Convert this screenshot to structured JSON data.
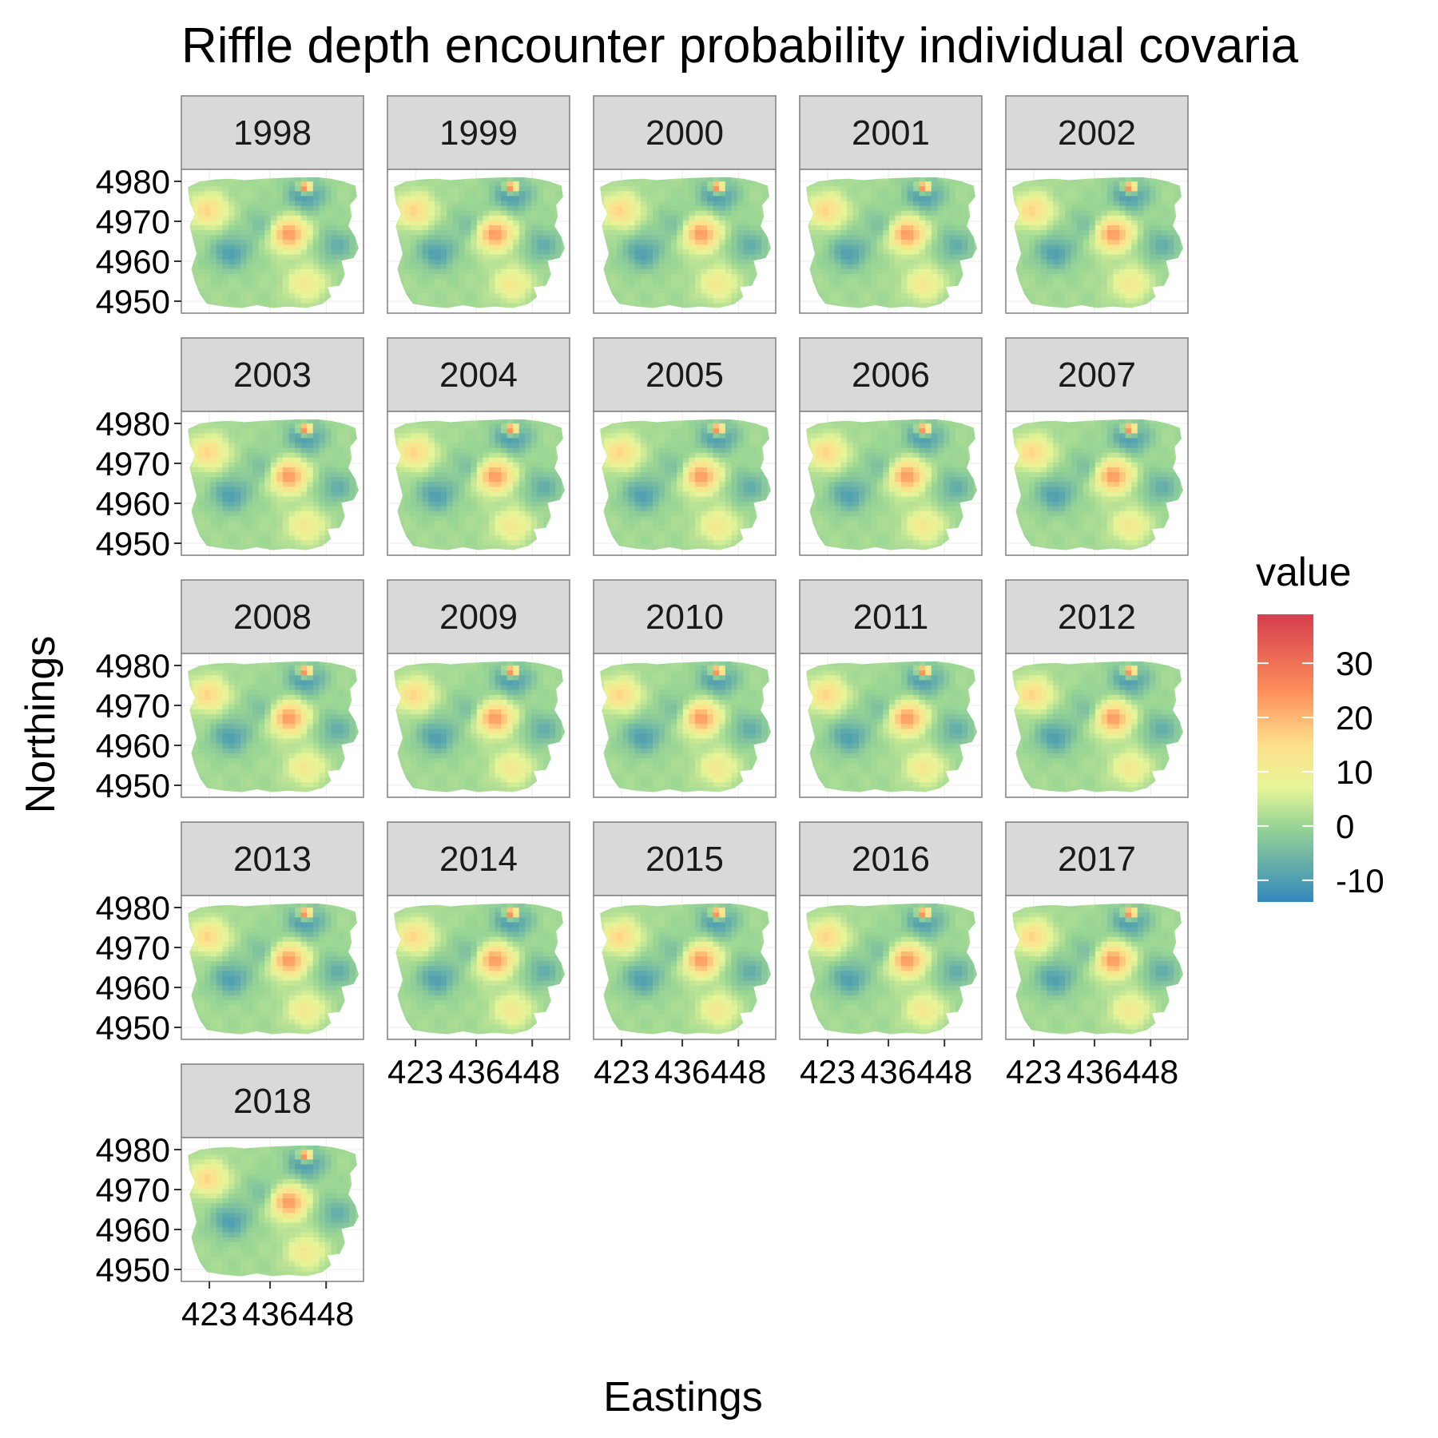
{
  "chart_data": {
    "type": "heatmap",
    "title": "Riffle depth encounter probability individual covaria",
    "xlabel": "Eastings",
    "ylabel": "Northings",
    "facets": [
      "1998",
      "1999",
      "2000",
      "2001",
      "2002",
      "2003",
      "2004",
      "2005",
      "2006",
      "2007",
      "2008",
      "2009",
      "2010",
      "2011",
      "2012",
      "2013",
      "2014",
      "2015",
      "2016",
      "2017",
      "2018"
    ],
    "x_ticks": [
      423,
      436,
      448
    ],
    "y_ticks": [
      4950,
      4960,
      4970,
      4980
    ],
    "xlim": [
      417,
      456
    ],
    "ylim": [
      4947,
      4983
    ],
    "legend": {
      "title": "value",
      "position": "right",
      "ticks": [
        30,
        20,
        10,
        0,
        -10
      ],
      "range": [
        -14,
        39
      ],
      "colors": [
        "#3288bd",
        "#99d594",
        "#e6f598",
        "#fee08b",
        "#fc8d59",
        "#d53e4f"
      ]
    },
    "color_scale": "spectral (blue = low, red = high)",
    "value_hotspots": [
      {
        "x": 440,
        "y": 4967,
        "value": 24
      },
      {
        "x": 444,
        "y": 4979,
        "value": 39
      },
      {
        "x": 444,
        "y": 4954,
        "value": 11
      },
      {
        "x": 422,
        "y": 4973,
        "value": 15
      },
      {
        "x": 427,
        "y": 4962,
        "value": -11
      },
      {
        "x": 435,
        "y": 4969,
        "value": -7
      },
      {
        "x": 444,
        "y": 4977,
        "value": -12
      },
      {
        "x": 451,
        "y": 4964,
        "value": -8
      }
    ]
  }
}
